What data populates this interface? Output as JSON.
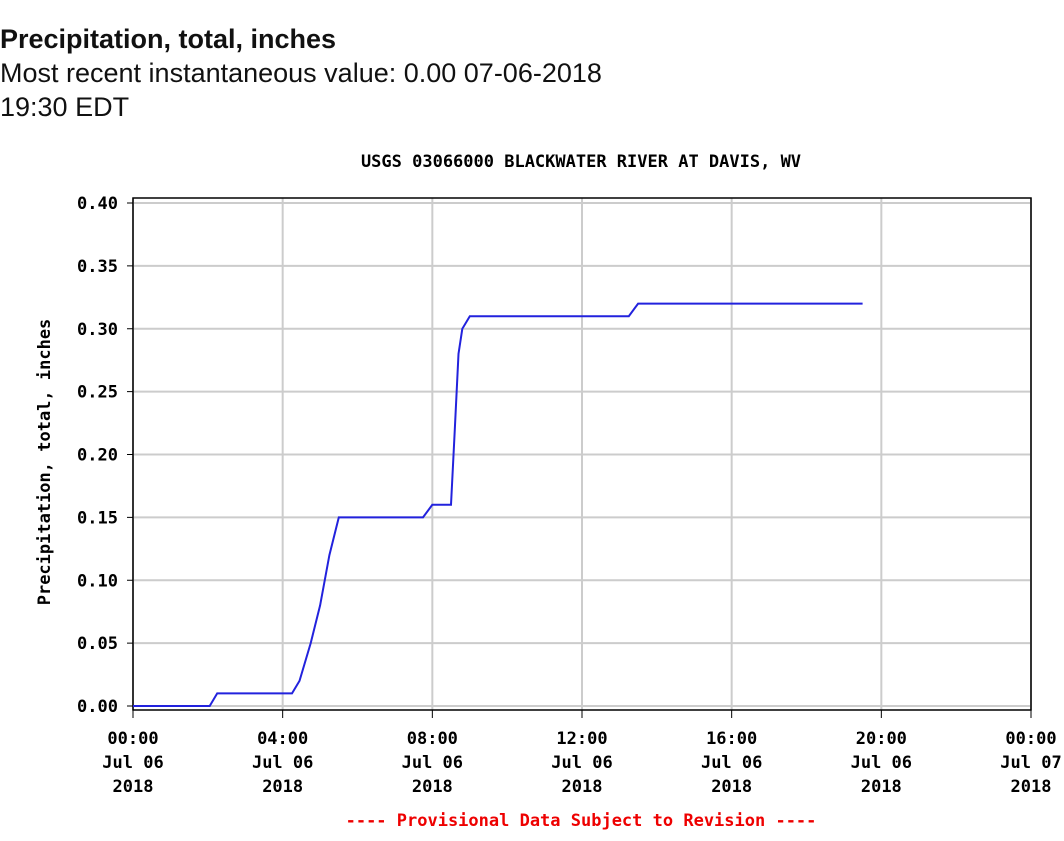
{
  "header": {
    "title": "Precipitation, total, inches",
    "recent_value": "Most recent instantaneous value: 0.00 07-06-2018   19:30 EDT"
  },
  "chart_data": {
    "type": "line",
    "title": "USGS 03066000 BLACKWATER RIVER AT DAVIS, WV",
    "xlabel": "",
    "ylabel": "Precipitation, total, inches",
    "footnote": "---- Provisional Data Subject to Revision ----",
    "xlim_hours": [
      0,
      24
    ],
    "ylim": [
      0,
      0.4
    ],
    "grid": true,
    "y_ticks": [
      "0.00",
      "0.05",
      "0.10",
      "0.15",
      "0.20",
      "0.25",
      "0.30",
      "0.35",
      "0.40"
    ],
    "x_ticks": [
      {
        "hour": 0,
        "lines": [
          "00:00",
          "Jul 06",
          "2018"
        ]
      },
      {
        "hour": 4,
        "lines": [
          "04:00",
          "Jul 06",
          "2018"
        ]
      },
      {
        "hour": 8,
        "lines": [
          "08:00",
          "Jul 06",
          "2018"
        ]
      },
      {
        "hour": 12,
        "lines": [
          "12:00",
          "Jul 06",
          "2018"
        ]
      },
      {
        "hour": 16,
        "lines": [
          "16:00",
          "Jul 06",
          "2018"
        ]
      },
      {
        "hour": 20,
        "lines": [
          "20:00",
          "Jul 06",
          "2018"
        ]
      },
      {
        "hour": 24,
        "lines": [
          "00:00",
          "Jul 07",
          "2018"
        ]
      }
    ],
    "series": [
      {
        "name": "Precipitation, total, inches",
        "color": "#2222dd",
        "x_hours": [
          0,
          2.05,
          2.25,
          4.25,
          4.45,
          4.75,
          5.0,
          5.25,
          5.5,
          7.75,
          8.0,
          8.5,
          8.6,
          8.7,
          8.8,
          9.0,
          13.25,
          13.5,
          19.5
        ],
        "y": [
          0,
          0,
          0.01,
          0.01,
          0.02,
          0.05,
          0.08,
          0.12,
          0.15,
          0.15,
          0.16,
          0.16,
          0.22,
          0.28,
          0.3,
          0.31,
          0.31,
          0.32,
          0.32
        ]
      }
    ],
    "footnote_color": "#ee0000"
  }
}
